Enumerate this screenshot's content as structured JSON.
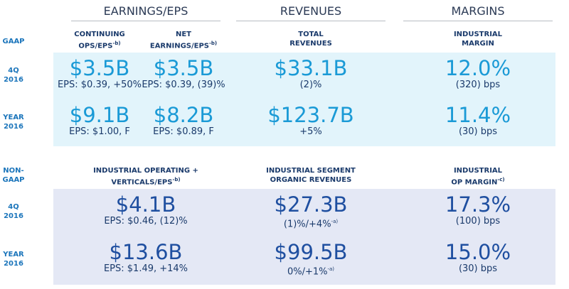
{
  "headers": [
    "EARNINGS/EPS",
    "REVENUES",
    "MARGINS"
  ],
  "gaap": {
    "label": [
      "GAAP"
    ],
    "columns": [
      {
        "lines": [
          "CONTINUING",
          "OPS/EPS"
        ],
        "sup": "-b)"
      },
      {
        "lines": [
          "NET",
          "EARNINGS/EPS"
        ],
        "sup": "-b)"
      },
      {
        "lines": [
          "TOTAL",
          "REVENUES"
        ]
      },
      {
        "lines": [
          "INDUSTRIAL",
          "MARGIN"
        ]
      }
    ],
    "rows": [
      {
        "label": [
          "4Q",
          "2016"
        ],
        "cells": [
          {
            "value": "$3.5B",
            "sub": "EPS: $0.39, +50%"
          },
          {
            "value": "$3.5B",
            "sub": "EPS: $0.39, (39)%"
          },
          {
            "value": "$33.1B",
            "sub": "(2)%"
          },
          {
            "value": "12.0%",
            "sub": "(320) bps"
          }
        ]
      },
      {
        "label": [
          "YEAR",
          "2016"
        ],
        "cells": [
          {
            "value": "$9.1B",
            "sub": "EPS: $1.00, F"
          },
          {
            "value": "$8.2B",
            "sub": "EPS: $0.89, F"
          },
          {
            "value": "$123.7B",
            "sub": "+5%"
          },
          {
            "value": "11.4%",
            "sub": "(30) bps"
          }
        ]
      }
    ]
  },
  "non_gaap": {
    "label": [
      "NON-",
      "GAAP"
    ],
    "columns": [
      {
        "lines": [
          "INDUSTRIAL OPERATING +",
          "VERTICALS/EPS"
        ],
        "sup": "-b)"
      },
      {
        "lines": [
          "INDUSTRIAL SEGMENT",
          "ORGANIC REVENUES"
        ]
      },
      {
        "lines": [
          "INDUSTRIAL",
          "OP MARGIN"
        ],
        "sup": "-c)"
      }
    ],
    "rows": [
      {
        "label": [
          "4Q",
          "2016"
        ],
        "cells": [
          {
            "value": "$4.1B",
            "sub": "EPS: $0.46, (12)%"
          },
          {
            "value": "$27.3B",
            "sub": "(1)%/+4%",
            "sup": "-a)"
          },
          {
            "value": "17.3%",
            "sub": "(100) bps"
          }
        ]
      },
      {
        "label": [
          "YEAR",
          "2016"
        ],
        "cells": [
          {
            "value": "$13.6B",
            "sub": "EPS: $1.49, +14%"
          },
          {
            "value": "$99.5B",
            "sub": "0%/+1%",
            "sup": "-a)"
          },
          {
            "value": "15.0%",
            "sub": "(30) bps"
          }
        ]
      }
    ]
  }
}
